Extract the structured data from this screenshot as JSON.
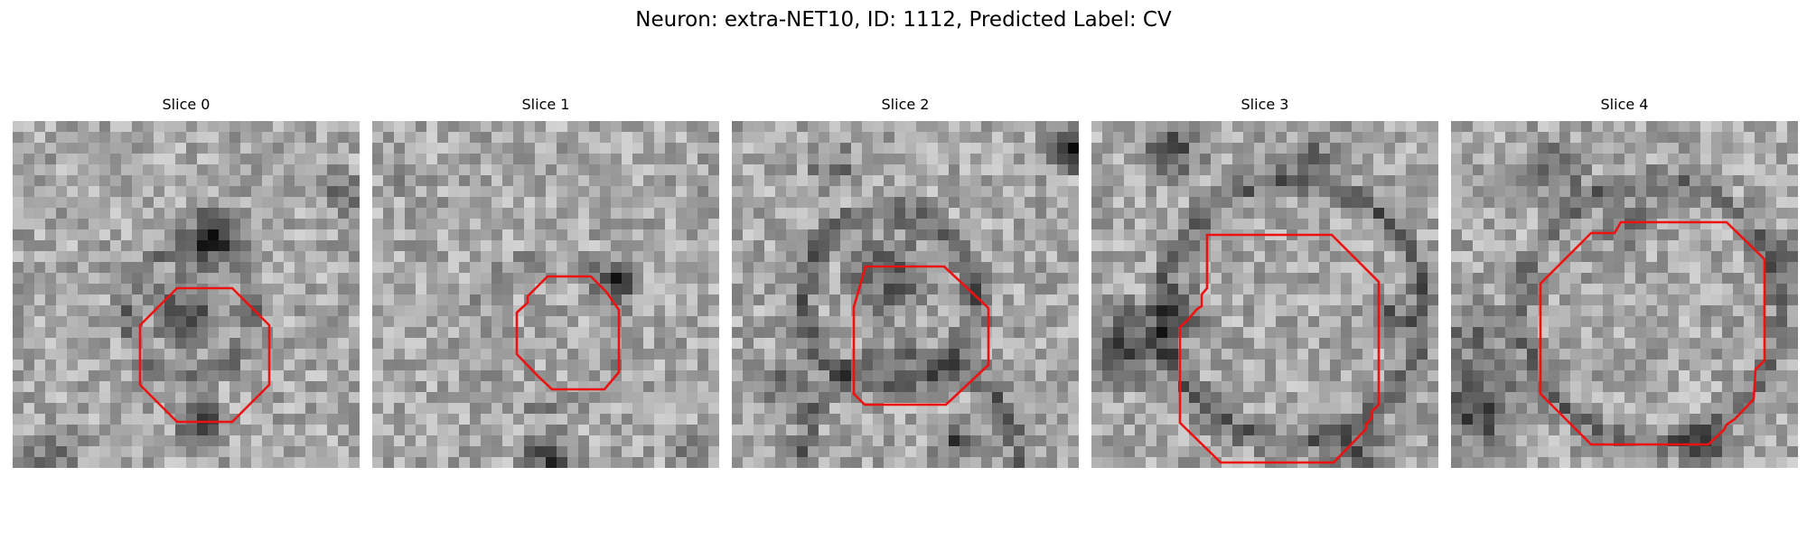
{
  "figure": {
    "title": "Neuron: extra-NET10, ID: 1112, Predicted Label: CV"
  },
  "slices": [
    {
      "title": "Slice 0",
      "image": "grayscale micrograph patch with red octagonal outline"
    },
    {
      "title": "Slice 1",
      "image": "grayscale micrograph patch with red octagonal outline"
    },
    {
      "title": "Slice 2",
      "image": "grayscale micrograph patch with red octagonal outline"
    },
    {
      "title": "Slice 3",
      "image": "grayscale micrograph patch with red octagonal outline"
    },
    {
      "title": "Slice 4",
      "image": "grayscale micrograph patch with red octagonal outline"
    }
  ],
  "colors": {
    "contour": "#ee1111",
    "background": "#ffffff"
  }
}
